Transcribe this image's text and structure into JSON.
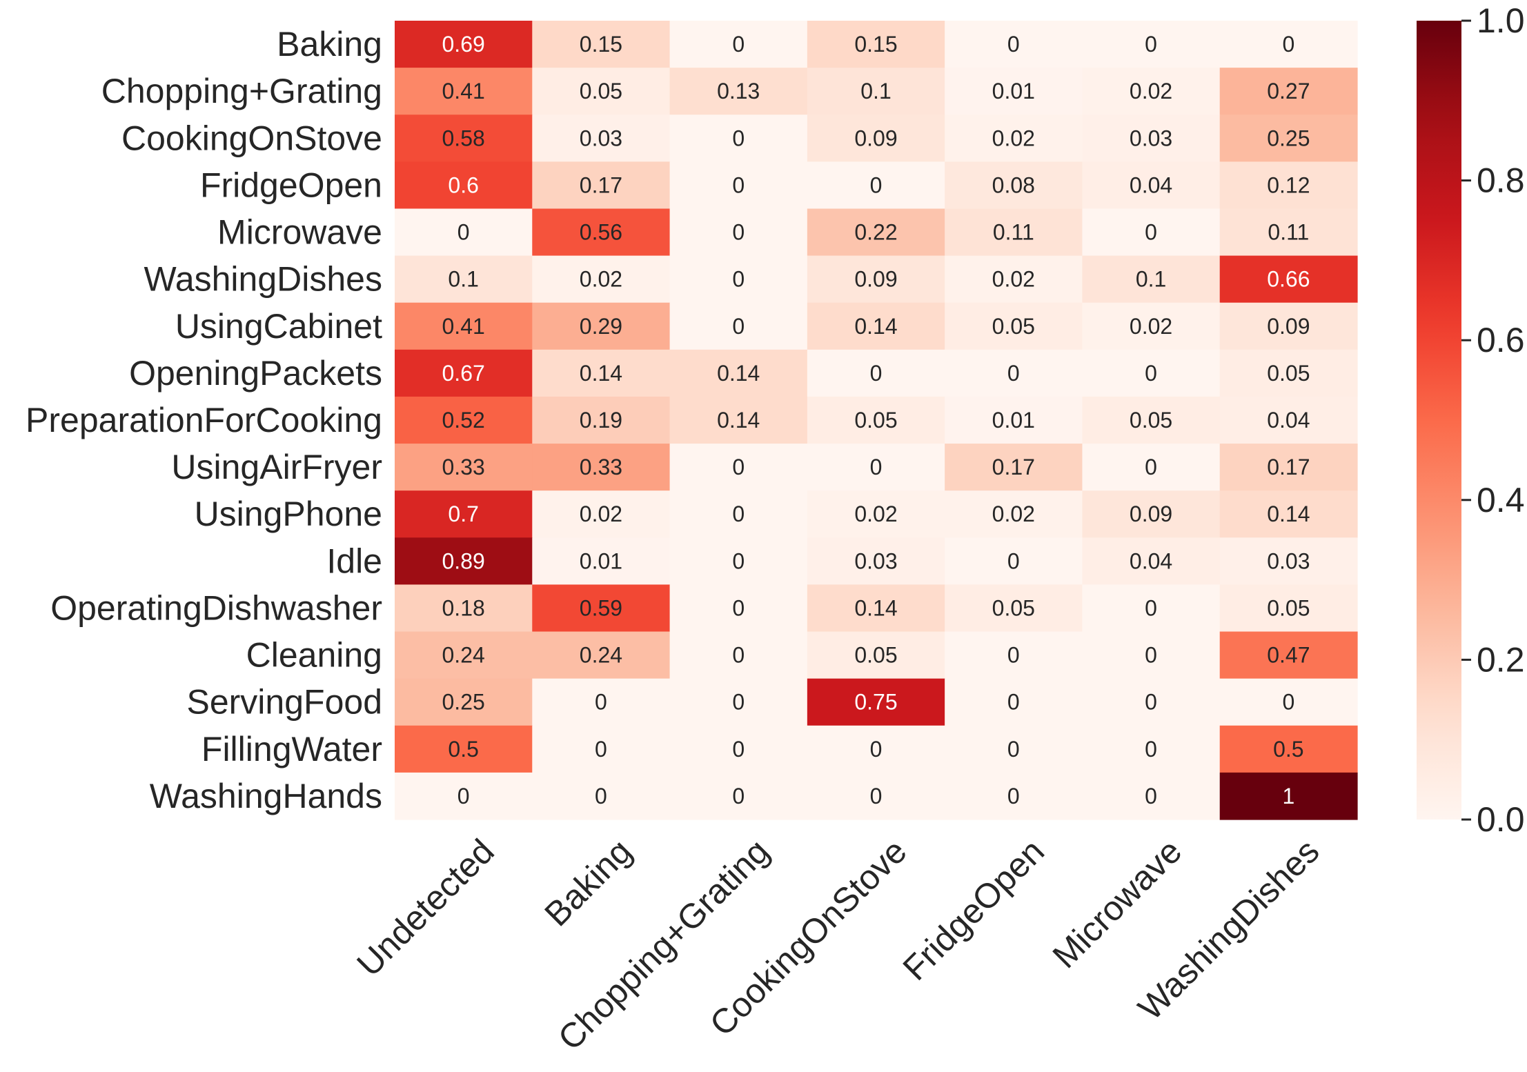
{
  "chart_data": {
    "type": "heatmap",
    "colormap": "Reds",
    "rows": [
      "Baking",
      "Chopping+Grating",
      "CookingOnStove",
      "FridgeOpen",
      "Microwave",
      "WashingDishes",
      "UsingCabinet",
      "OpeningPackets",
      "PreparationForCooking",
      "UsingAirFryer",
      "UsingPhone",
      "Idle",
      "OperatingDishwasher",
      "Cleaning",
      "ServingFood",
      "FillingWater",
      "WashingHands"
    ],
    "columns": [
      "Undetected",
      "Baking",
      "Chopping+Grating",
      "CookingOnStove",
      "FridgeOpen",
      "Microwave",
      "WashingDishes"
    ],
    "values": [
      [
        0.69,
        0.15,
        0,
        0.15,
        0,
        0,
        0
      ],
      [
        0.41,
        0.05,
        0.13,
        0.1,
        0.01,
        0.02,
        0.27
      ],
      [
        0.58,
        0.03,
        0,
        0.09,
        0.02,
        0.03,
        0.25
      ],
      [
        0.6,
        0.17,
        0,
        0,
        0.08,
        0.04,
        0.12
      ],
      [
        0,
        0.56,
        0,
        0.22,
        0.11,
        0,
        0.11
      ],
      [
        0.1,
        0.02,
        0,
        0.09,
        0.02,
        0.1,
        0.66
      ],
      [
        0.41,
        0.29,
        0,
        0.14,
        0.05,
        0.02,
        0.09
      ],
      [
        0.67,
        0.14,
        0.14,
        0,
        0,
        0,
        0.05
      ],
      [
        0.52,
        0.19,
        0.14,
        0.05,
        0.01,
        0.05,
        0.04
      ],
      [
        0.33,
        0.33,
        0,
        0,
        0.17,
        0,
        0.17
      ],
      [
        0.7,
        0.02,
        0,
        0.02,
        0.02,
        0.09,
        0.14
      ],
      [
        0.89,
        0.01,
        0,
        0.03,
        0,
        0.04,
        0.03
      ],
      [
        0.18,
        0.59,
        0,
        0.14,
        0.05,
        0,
        0.05
      ],
      [
        0.24,
        0.24,
        0,
        0.05,
        0,
        0,
        0.47
      ],
      [
        0.25,
        0,
        0,
        0.75,
        0,
        0,
        0
      ],
      [
        0.5,
        0,
        0,
        0,
        0,
        0,
        0.5
      ],
      [
        0,
        0,
        0,
        0,
        0,
        0,
        1
      ]
    ],
    "colorbar": {
      "range": [
        0.0,
        1.0
      ],
      "ticks": [
        "0.0",
        "0.2",
        "0.4",
        "0.6",
        "0.8",
        "1.0"
      ]
    },
    "title": "",
    "xlabel": "",
    "ylabel": ""
  }
}
